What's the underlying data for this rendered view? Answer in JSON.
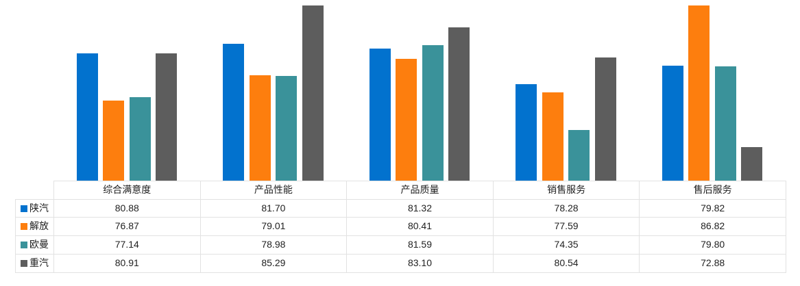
{
  "chart_data": {
    "type": "bar",
    "title": "",
    "xlabel": "",
    "ylabel": "",
    "categories": [
      "综合满意度",
      "产品性能",
      "产品质量",
      "销售服务",
      "售后服务"
    ],
    "series": [
      {
        "name": "陕汽",
        "color": "#0272CE",
        "values": [
          80.88,
          81.7,
          81.32,
          78.28,
          79.82
        ]
      },
      {
        "name": "解放",
        "color": "#FD7E0E",
        "values": [
          76.87,
          79.01,
          80.41,
          77.59,
          86.82
        ]
      },
      {
        "name": "欧曼",
        "color": "#3A929A",
        "values": [
          77.14,
          78.98,
          81.59,
          74.35,
          79.8
        ]
      },
      {
        "name": "重汽",
        "color": "#5D5D5D",
        "values": [
          80.91,
          85.29,
          83.1,
          80.54,
          72.88
        ]
      }
    ],
    "ylim": [
      70,
      85
    ],
    "clip_values_above_max": true,
    "grid": false,
    "legend_position": "data-table-row-headers"
  },
  "table": {
    "corner_label": "",
    "columns": [
      "综合满意度",
      "产品性能",
      "产品质量",
      "销售服务",
      "售后服务"
    ],
    "rows": [
      {
        "label": "陕汽",
        "values": [
          "80.88",
          "81.70",
          "81.32",
          "78.28",
          "79.82"
        ]
      },
      {
        "label": "解放",
        "values": [
          "76.87",
          "79.01",
          "80.41",
          "77.59",
          "86.82"
        ]
      },
      {
        "label": "欧曼",
        "values": [
          "77.14",
          "78.98",
          "81.59",
          "74.35",
          "79.80"
        ]
      },
      {
        "label": "重汽",
        "values": [
          "80.91",
          "85.29",
          "83.10",
          "80.54",
          "72.88"
        ]
      }
    ],
    "border_color": "#E2E2E2",
    "text_color": "#212121"
  }
}
